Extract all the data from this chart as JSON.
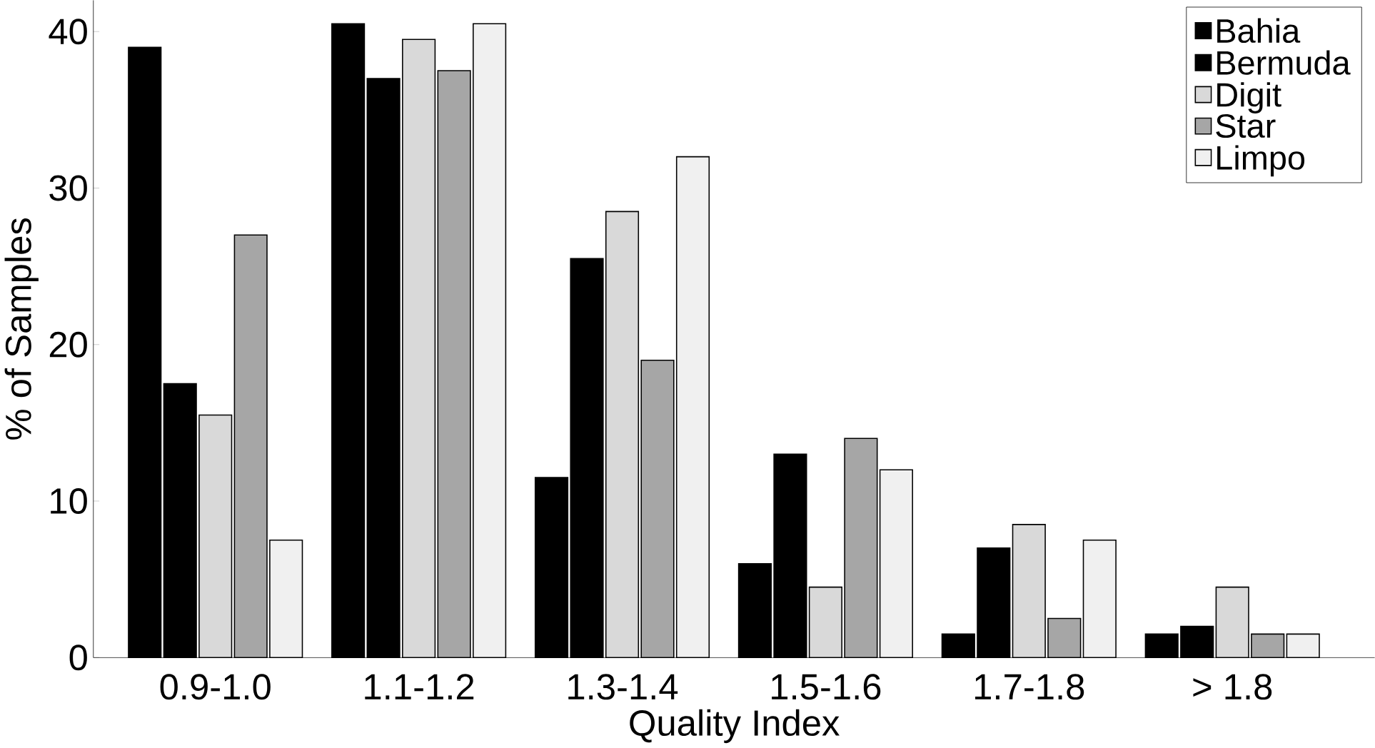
{
  "chart_data": {
    "type": "bar",
    "xlabel": "Quality Index",
    "ylabel": "% of Samples",
    "categories": [
      "0.9-1.0",
      "1.1-1.2",
      "1.3-1.4",
      "1.5-1.6",
      "1.7-1.8",
      "> 1.8"
    ],
    "series": [
      {
        "name": "Bahia",
        "color": "#000000",
        "values": [
          39,
          40.5,
          11.5,
          6,
          1.5,
          1.5
        ]
      },
      {
        "name": "Bermuda",
        "color": "#000000",
        "values": [
          17.5,
          37,
          25.5,
          13,
          7,
          2
        ]
      },
      {
        "name": "Digit",
        "color": "#d9d9d9",
        "values": [
          15.5,
          39.5,
          28.5,
          4.5,
          8.5,
          4.5
        ]
      },
      {
        "name": "Star",
        "color": "#a6a6a6",
        "values": [
          27,
          37.5,
          19,
          14,
          2.5,
          1.5
        ]
      },
      {
        "name": "Limpo",
        "color": "#f0f0f0",
        "values": [
          7.5,
          40.5,
          32,
          12,
          7.5,
          1.5
        ]
      }
    ],
    "ylim": [
      0,
      42
    ],
    "yticks": [
      0,
      10,
      20,
      30,
      40
    ],
    "grid": false,
    "legend": "top right"
  }
}
